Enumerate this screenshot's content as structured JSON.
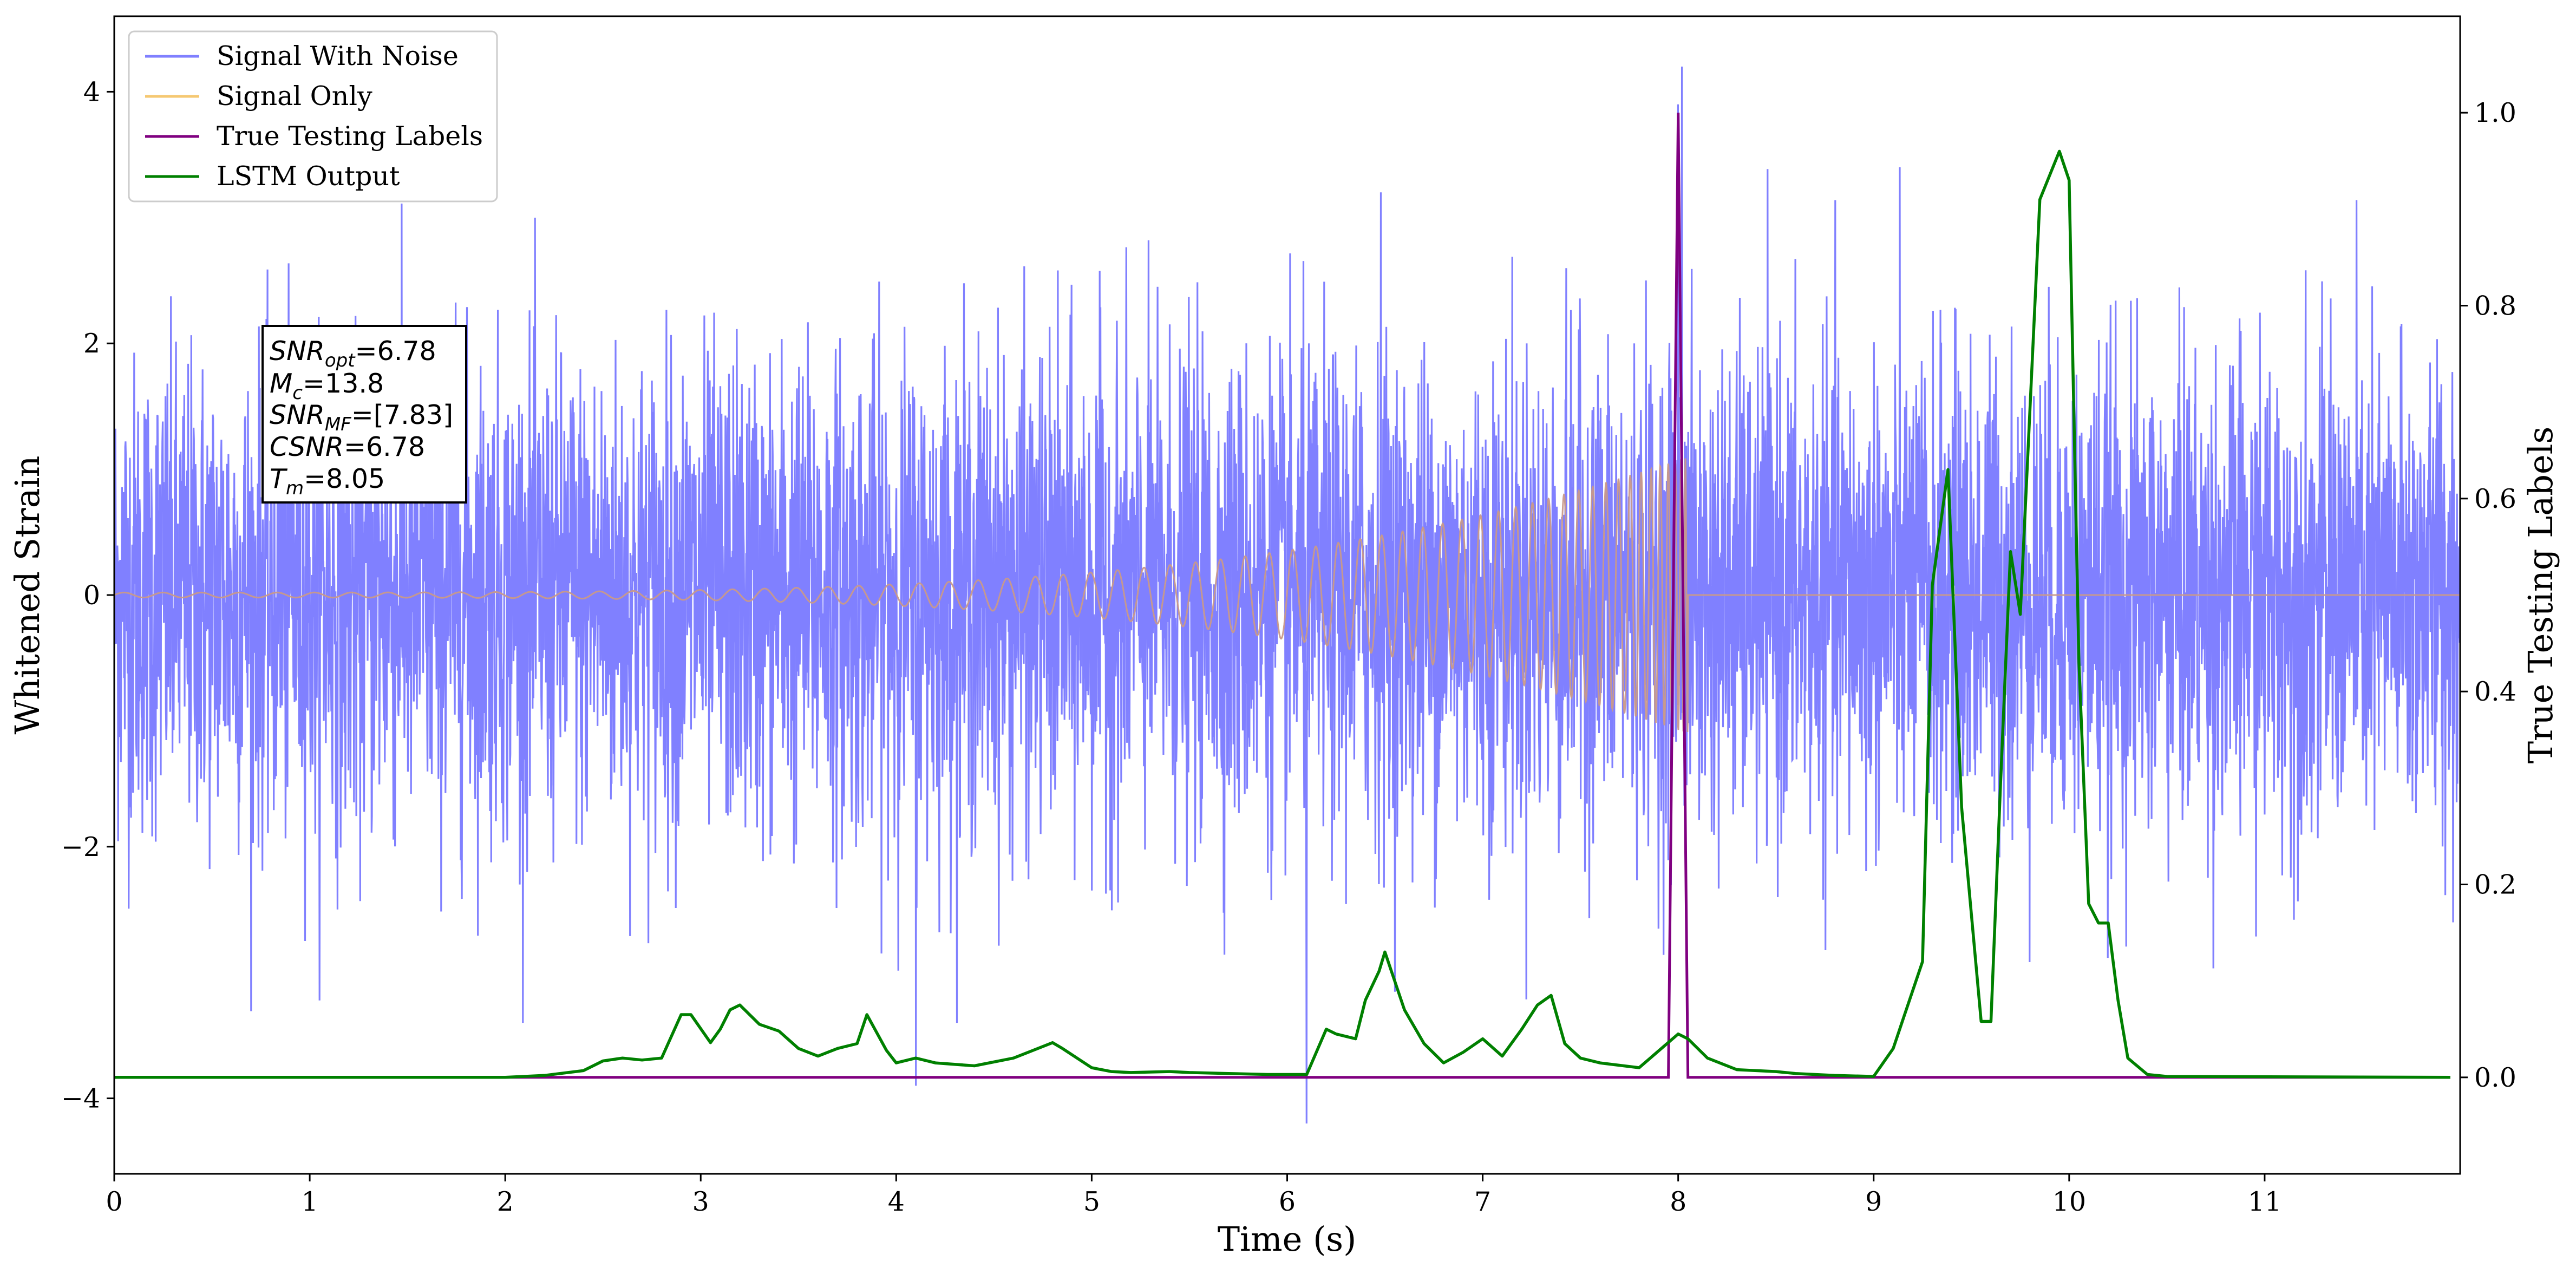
{
  "chart_data": {
    "type": "line",
    "xlabel": "Time (s)",
    "ylabel": "Whitened Strain",
    "ylabel_right": "True Testing Labels",
    "xlim": [
      0,
      12
    ],
    "ylim": [
      -4.6,
      4.6
    ],
    "ylim_right": [
      -0.1,
      1.1
    ],
    "x_ticks": [
      "0",
      "1",
      "2",
      "3",
      "4",
      "5",
      "6",
      "7",
      "8",
      "9",
      "10",
      "11"
    ],
    "y_ticks": [
      "−4",
      "−2",
      "0",
      "2",
      "4"
    ],
    "y_ticks_right": [
      "0.0",
      "0.2",
      "0.4",
      "0.6",
      "0.8",
      "1.0"
    ],
    "legend": {
      "placement": "top-left",
      "entries": [
        "Signal With Noise",
        "Signal Only",
        "True Testing Labels",
        "LSTM Output"
      ]
    },
    "annotation": {
      "lines": [
        {
          "base": "SNR",
          "sub": "opt",
          "value": "=6.78"
        },
        {
          "base": "M",
          "sub": "c",
          "value": "=13.8"
        },
        {
          "base": "SNR",
          "sub": "MF",
          "value": "=[7.83]"
        },
        {
          "base": "CSNR",
          "sub": "",
          "value": "=6.78"
        },
        {
          "base": "T",
          "sub": "m",
          "value": "=8.05"
        }
      ]
    },
    "colors": {
      "noise": "#8080ff",
      "signal": "#f5c872",
      "signal_overlap": "#c8998a",
      "labels": "#800080",
      "lstm": "#008000"
    },
    "series": [
      {
        "name": "Signal With Noise",
        "axis": "left",
        "description_stats": {
          "std": 0.95,
          "min": -4.2,
          "max": 4.2
        },
        "peaks": [
          {
            "x": 8.02,
            "y": 4.2
          },
          {
            "x": 8.0,
            "y": 3.9
          },
          {
            "x": 6.1,
            "y": -4.2
          },
          {
            "x": 4.1,
            "y": -3.9
          },
          {
            "x": 6.48,
            "y": 3.2
          }
        ]
      },
      {
        "name": "Signal Only",
        "axis": "left",
        "chirp": {
          "start": 0,
          "merger": 8.05,
          "amp_start": 0.02,
          "amp_merger": 1.1,
          "after": 0
        }
      },
      {
        "name": "True Testing Labels",
        "axis": "right",
        "x": [
          0,
          7.95,
          8.0,
          8.05,
          8.06,
          11.95
        ],
        "y": [
          0,
          0,
          1.0,
          0,
          0,
          0
        ]
      },
      {
        "name": "LSTM Output",
        "axis": "right",
        "x": [
          0,
          0.5,
          1.0,
          1.5,
          2.0,
          2.2,
          2.4,
          2.5,
          2.6,
          2.7,
          2.8,
          2.9,
          2.95,
          3.05,
          3.1,
          3.15,
          3.2,
          3.3,
          3.4,
          3.5,
          3.6,
          3.7,
          3.8,
          3.85,
          3.95,
          4.0,
          4.1,
          4.2,
          4.4,
          4.6,
          4.8,
          4.85,
          5.0,
          5.1,
          5.2,
          5.4,
          5.5,
          5.7,
          5.9,
          6.1,
          6.2,
          6.25,
          6.35,
          6.4,
          6.47,
          6.5,
          6.6,
          6.7,
          6.8,
          6.9,
          7.0,
          7.1,
          7.2,
          7.28,
          7.35,
          7.42,
          7.5,
          7.6,
          7.8,
          8.0,
          8.05,
          8.15,
          8.3,
          8.5,
          8.6,
          8.8,
          9.0,
          9.1,
          9.15,
          9.25,
          9.3,
          9.38,
          9.45,
          9.55,
          9.6,
          9.65,
          9.7,
          9.75,
          9.85,
          9.95,
          10.0,
          10.05,
          10.1,
          10.15,
          10.2,
          10.25,
          10.3,
          10.4,
          10.5,
          11.95
        ],
        "y": [
          0,
          0,
          0,
          0,
          0,
          0.002,
          0.007,
          0.017,
          0.02,
          0.018,
          0.02,
          0.065,
          0.065,
          0.036,
          0.05,
          0.07,
          0.075,
          0.055,
          0.048,
          0.03,
          0.022,
          0.03,
          0.035,
          0.065,
          0.028,
          0.015,
          0.02,
          0.015,
          0.012,
          0.02,
          0.036,
          0.03,
          0.01,
          0.006,
          0.005,
          0.006,
          0.005,
          0.004,
          0.003,
          0.003,
          0.05,
          0.045,
          0.04,
          0.08,
          0.11,
          0.13,
          0.07,
          0.035,
          0.015,
          0.026,
          0.04,
          0.022,
          0.05,
          0.075,
          0.085,
          0.035,
          0.02,
          0.015,
          0.01,
          0.045,
          0.04,
          0.02,
          0.008,
          0.006,
          0.004,
          0.002,
          0.001,
          0.03,
          0.06,
          0.12,
          0.51,
          0.63,
          0.28,
          0.058,
          0.058,
          0.31,
          0.545,
          0.48,
          0.91,
          0.96,
          0.93,
          0.43,
          0.18,
          0.16,
          0.16,
          0.08,
          0.02,
          0.003,
          0.001,
          0
        ]
      }
    ]
  }
}
